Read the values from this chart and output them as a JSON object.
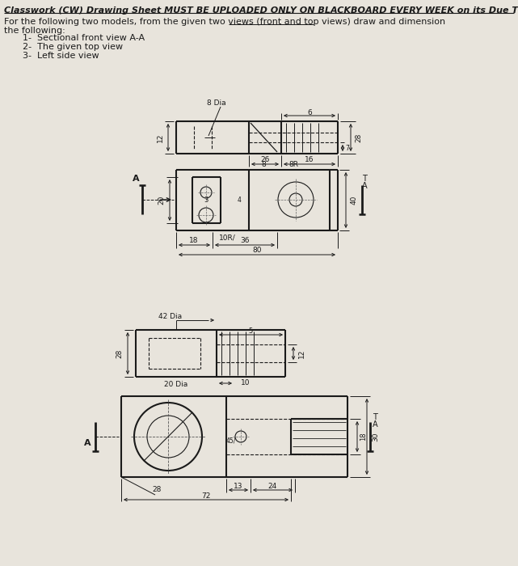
{
  "bg_color": "#e8e4dc",
  "title_line1": "Classwork (CW) Drawing Sheet MUST BE UPLOADED ONLY ON BLACKBOARD EVERY WEEK on its Due Time",
  "body_line1": "For the following two models, from the given two views (front and top views) draw and dimension",
  "body_line2": "the following:",
  "items": [
    "1-  Sectional front view A-A",
    "2-  The given top view",
    "3-  Left side view"
  ],
  "line_color": "#1a1a1a",
  "bg_color2": "#e8e4dc"
}
